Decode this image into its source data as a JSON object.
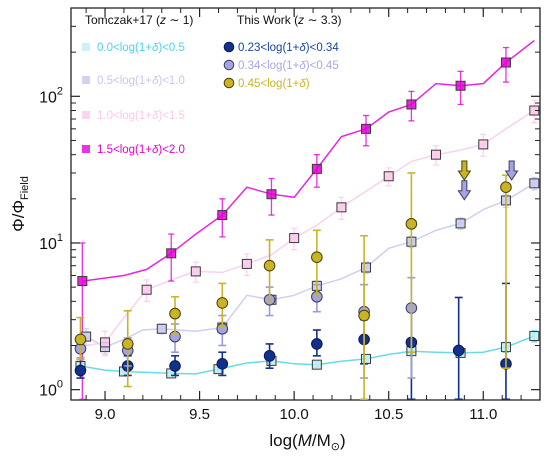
{
  "chart_data": {
    "type": "scatter",
    "xlabel_parts": [
      "log(",
      "M",
      "/M",
      "⊙",
      ")"
    ],
    "ylabel_parts": [
      "Φ/Φ",
      "Field"
    ],
    "xlim": [
      8.82,
      11.3
    ],
    "ylim": [
      0.85,
      400
    ],
    "yscale": "log",
    "grid": false,
    "legend_placement": "top",
    "x_ticks": [
      {
        "value": 9.0,
        "label": "9.0"
      },
      {
        "value": 9.5,
        "label": "9.5"
      },
      {
        "value": 10.0,
        "label": "10.0"
      },
      {
        "value": 10.5,
        "label": "10.5"
      },
      {
        "value": 11.0,
        "label": "11.0"
      }
    ],
    "y_ticks": [
      {
        "value": 1,
        "base": "10",
        "exp": "0"
      },
      {
        "value": 10,
        "base": "10",
        "exp": "1"
      },
      {
        "value": 100,
        "base": "10",
        "exp": "2"
      }
    ],
    "legend_headers": {
      "left": {
        "text": "Tomczak+17 (",
        "zlabel": "z",
        "tail": " ∼ 1)"
      },
      "right": {
        "text": "This Work (",
        "zlabel": "z",
        "tail": " ∼ 3.3)"
      }
    },
    "tomczak_series": [
      {
        "legend": "0.0<log(1+δ)<0.5",
        "color": "#4fd3e6",
        "fill": "#bfeef6",
        "edge": "#3a3a3a",
        "points": [
          [
            8.87,
            1.45
          ],
          [
            9.0,
            1.36
          ],
          [
            9.1,
            1.33
          ],
          [
            9.22,
            1.31
          ],
          [
            9.35,
            1.29
          ],
          [
            9.48,
            1.28
          ],
          [
            9.6,
            1.38
          ],
          [
            9.75,
            1.52
          ],
          [
            9.88,
            1.57
          ],
          [
            10.0,
            1.5
          ],
          [
            10.12,
            1.48
          ],
          [
            10.25,
            1.56
          ],
          [
            10.38,
            1.62
          ],
          [
            10.5,
            1.74
          ],
          [
            10.62,
            1.83
          ],
          [
            10.75,
            1.8
          ],
          [
            10.88,
            1.78
          ],
          [
            11.0,
            1.8
          ],
          [
            11.12,
            1.95
          ],
          [
            11.27,
            2.32
          ]
        ],
        "err": [
          [
            0.08,
            0.08
          ],
          [
            0.06,
            0.06
          ],
          [
            0.05,
            0.05
          ],
          [
            0.05,
            0.05
          ],
          [
            0.05,
            0.05
          ],
          [
            0.05,
            0.05
          ],
          [
            0.05,
            0.05
          ],
          [
            0.06,
            0.06
          ],
          [
            0.06,
            0.06
          ],
          [
            0.06,
            0.06
          ],
          [
            0.06,
            0.06
          ],
          [
            0.06,
            0.06
          ],
          [
            0.07,
            0.07
          ],
          [
            0.08,
            0.08
          ],
          [
            0.08,
            0.08
          ],
          [
            0.09,
            0.09
          ],
          [
            0.1,
            0.1
          ],
          [
            0.12,
            0.12
          ],
          [
            0.15,
            0.15
          ],
          [
            0.2,
            0.2
          ]
        ]
      },
      {
        "legend": "0.5<log(1+δ)<1.0",
        "color": "#c6c8ee",
        "fill": "#c6c8ee",
        "edge": "#3a3a3a",
        "points": [
          [
            8.9,
            2.3
          ],
          [
            9.0,
            1.95
          ],
          [
            9.1,
            2.2
          ],
          [
            9.2,
            2.55
          ],
          [
            9.3,
            2.6
          ],
          [
            9.48,
            2.5
          ],
          [
            9.62,
            2.65
          ],
          [
            9.75,
            4.4
          ],
          [
            9.88,
            4.1
          ],
          [
            10.0,
            4.4
          ],
          [
            10.12,
            5.1
          ],
          [
            10.25,
            5.7
          ],
          [
            10.38,
            6.8
          ],
          [
            10.5,
            9.2
          ],
          [
            10.62,
            10.2
          ],
          [
            10.75,
            12.2
          ],
          [
            10.88,
            13.6
          ],
          [
            11.0,
            16.9
          ],
          [
            11.12,
            19.5
          ],
          [
            11.27,
            25.5
          ]
        ],
        "err": [
          [
            0.3,
            0.3
          ],
          [
            0.2,
            0.2
          ],
          [
            0.2,
            0.2
          ],
          [
            0.2,
            0.2
          ],
          [
            0.2,
            0.2
          ],
          [
            0.2,
            0.2
          ],
          [
            0.25,
            0.25
          ],
          [
            0.3,
            0.3
          ],
          [
            0.3,
            0.3
          ],
          [
            0.35,
            0.35
          ],
          [
            0.4,
            0.4
          ],
          [
            0.5,
            0.5
          ],
          [
            0.6,
            0.6
          ],
          [
            0.8,
            0.8
          ],
          [
            0.9,
            0.9
          ],
          [
            1.0,
            1.0
          ],
          [
            1.2,
            1.2
          ],
          [
            1.5,
            1.5
          ],
          [
            2.0,
            2.0
          ],
          [
            2.5,
            2.5
          ]
        ]
      },
      {
        "legend": "1.0<log(1+δ)<1.5",
        "color": "#fbc8ec",
        "fill": "#fbc8ec",
        "edge": "#3a3a3a",
        "points": [
          [
            8.9,
            2.0
          ],
          [
            9.0,
            2.1
          ],
          [
            9.1,
            3.1
          ],
          [
            9.22,
            4.8
          ],
          [
            9.35,
            5.6
          ],
          [
            9.48,
            6.4
          ],
          [
            9.62,
            6.3
          ],
          [
            9.75,
            7.2
          ],
          [
            9.88,
            8.3
          ],
          [
            10.0,
            10.8
          ],
          [
            10.12,
            13.2
          ],
          [
            10.25,
            17.5
          ],
          [
            10.38,
            22.5
          ],
          [
            10.5,
            28.5
          ],
          [
            10.62,
            36.0
          ],
          [
            10.75,
            40.0
          ],
          [
            10.88,
            43.0
          ],
          [
            11.0,
            47.0
          ],
          [
            11.12,
            60.0
          ],
          [
            11.27,
            80.0
          ]
        ],
        "err": [
          [
            0.4,
            0.4
          ],
          [
            0.4,
            0.4
          ],
          [
            0.5,
            0.5
          ],
          [
            0.8,
            0.8
          ],
          [
            0.9,
            0.9
          ],
          [
            1.0,
            1.0
          ],
          [
            1.0,
            1.0
          ],
          [
            1.2,
            1.2
          ],
          [
            1.4,
            1.4
          ],
          [
            1.8,
            1.8
          ],
          [
            2.2,
            2.2
          ],
          [
            3.0,
            3.0
          ],
          [
            3.5,
            3.5
          ],
          [
            4.0,
            4.0
          ],
          [
            5.0,
            5.0
          ],
          [
            6.0,
            6.0
          ],
          [
            7.0,
            7.0
          ],
          [
            8.0,
            8.0
          ],
          [
            10.0,
            10.0
          ],
          [
            14.0,
            14.0
          ]
        ]
      },
      {
        "legend": "1.5<log(1+δ)<2.0",
        "color": "#e400d8",
        "fill": "#e400d8",
        "edge": "#3a3a3a",
        "points": [
          [
            8.88,
            5.5
          ],
          [
            9.1,
            6.0
          ],
          [
            9.22,
            6.6
          ],
          [
            9.35,
            8.5
          ],
          [
            9.48,
            11.5
          ],
          [
            9.62,
            15.5
          ],
          [
            9.75,
            24.0
          ],
          [
            9.88,
            21.5
          ],
          [
            10.0,
            20.5
          ],
          [
            10.12,
            32.0
          ],
          [
            10.25,
            53.0
          ],
          [
            10.38,
            60.0
          ],
          [
            10.5,
            78.0
          ],
          [
            10.62,
            88.0
          ],
          [
            10.75,
            122.0
          ],
          [
            10.88,
            118.0
          ],
          [
            11.0,
            122.0
          ],
          [
            11.12,
            170.0
          ],
          [
            11.27,
            240.0
          ]
        ],
        "err": [
          [
            11.5,
            4.5
          ],
          [
            4.0,
            3.5
          ],
          [
            3.0,
            3.0
          ],
          [
            3.0,
            3.0
          ],
          [
            3.5,
            3.5
          ],
          [
            4.5,
            4.5
          ],
          [
            6.0,
            6.0
          ],
          [
            6.0,
            6.0
          ],
          [
            6.0,
            6.0
          ],
          [
            8.0,
            8.0
          ],
          [
            12.0,
            12.0
          ],
          [
            14.0,
            14.0
          ],
          [
            18.0,
            18.0
          ],
          [
            20.0,
            20.0
          ],
          [
            28.0,
            28.0
          ],
          [
            30.0,
            30.0
          ],
          [
            35.0,
            35.0
          ],
          [
            45.0,
            45.0
          ],
          [
            85.0,
            85.0
          ]
        ]
      }
    ],
    "tomczak_marker_indices": [
      [
        0,
        2,
        4,
        6,
        8,
        10,
        12,
        14,
        16,
        18,
        19
      ],
      [
        0,
        1,
        4,
        6,
        8,
        10,
        12,
        14,
        16,
        18,
        19
      ],
      [
        1,
        3,
        5,
        7,
        9,
        11,
        13,
        15,
        17,
        19
      ],
      [
        0,
        3,
        5,
        7,
        9,
        11,
        13,
        15,
        17,
        19
      ]
    ],
    "this_work_series": [
      {
        "legend": "0.23<log(1+δ)<0.34",
        "color": "#13318a",
        "fill": "#13318a",
        "edge": "#0a1a55",
        "legend_color": "#1a43a8",
        "points": [
          [
            8.87,
            1.35
          ],
          [
            9.12,
            1.45
          ],
          [
            9.37,
            1.45
          ],
          [
            9.62,
            1.5
          ],
          [
            9.87,
            1.7
          ],
          [
            10.12,
            2.05
          ],
          [
            10.37,
            2.2
          ],
          [
            10.62,
            2.1
          ],
          [
            10.87,
            1.85
          ],
          [
            11.12,
            1.5
          ]
        ],
        "err": [
          [
            0.15,
            0.25
          ],
          [
            0.2,
            0.25
          ],
          [
            0.2,
            0.25
          ],
          [
            0.25,
            0.3
          ],
          [
            0.3,
            0.35
          ],
          [
            0.35,
            0.5
          ],
          [
            0.7,
            0.8
          ],
          [
            1.9,
            1.5
          ],
          [
            1.3,
            2.4
          ],
          [
            1.0,
            3.8
          ]
        ]
      },
      {
        "legend": "0.34<log(1+δ)<0.45",
        "color": "#9b9bd9",
        "fill": "#a5a5dd",
        "edge": "#3a3a6a",
        "legend_color": "#a8a8e0",
        "points": [
          [
            8.87,
            1.9
          ],
          [
            9.12,
            1.85
          ],
          [
            9.37,
            2.3
          ],
          [
            9.62,
            2.6
          ],
          [
            9.87,
            4.1
          ],
          [
            10.12,
            4.3
          ],
          [
            10.37,
            3.4
          ],
          [
            10.62,
            3.6
          ]
        ],
        "err": [
          [
            0.25,
            0.3
          ],
          [
            0.4,
            0.4
          ],
          [
            0.5,
            0.5
          ],
          [
            0.6,
            0.6
          ],
          [
            0.9,
            0.9
          ],
          [
            0.9,
            0.9
          ],
          [
            2.2,
            1.8
          ],
          [
            2.4,
            2.2
          ]
        ]
      },
      {
        "legend": "0.45<log(1+δ)",
        "color": "#c9b428",
        "fill": "#c9b428",
        "edge": "#4a4000",
        "legend_color": "#c9b428",
        "points": [
          [
            8.87,
            2.2
          ],
          [
            9.12,
            2.05
          ],
          [
            9.37,
            3.3
          ],
          [
            9.62,
            3.9
          ],
          [
            9.87,
            7.0
          ],
          [
            10.12,
            8.0
          ],
          [
            10.37,
            3.2
          ],
          [
            10.62,
            13.5
          ]
        ],
        "err": [
          [
            0.6,
            0.9
          ],
          [
            1.0,
            1.4
          ],
          [
            0.9,
            1.0
          ],
          [
            1.2,
            1.4
          ],
          [
            3.0,
            3.5
          ],
          [
            3.6,
            4.2
          ],
          [
            2.6,
            8.0
          ],
          [
            11.7,
            16.5
          ]
        ],
        "upper_limit": {
          "x": 11.12,
          "value": 24.0,
          "err": [
            22.6,
            5.0
          ]
        }
      }
    ],
    "upper_limit_arrows": [
      {
        "x": 10.9,
        "value": 30.0,
        "series": 2
      },
      {
        "x": 10.9,
        "value": 22.0,
        "series": 1
      },
      {
        "x": 11.15,
        "value": 30.0,
        "series": 1
      }
    ],
    "frame_color": "#222222",
    "tick_color": "#222222"
  }
}
